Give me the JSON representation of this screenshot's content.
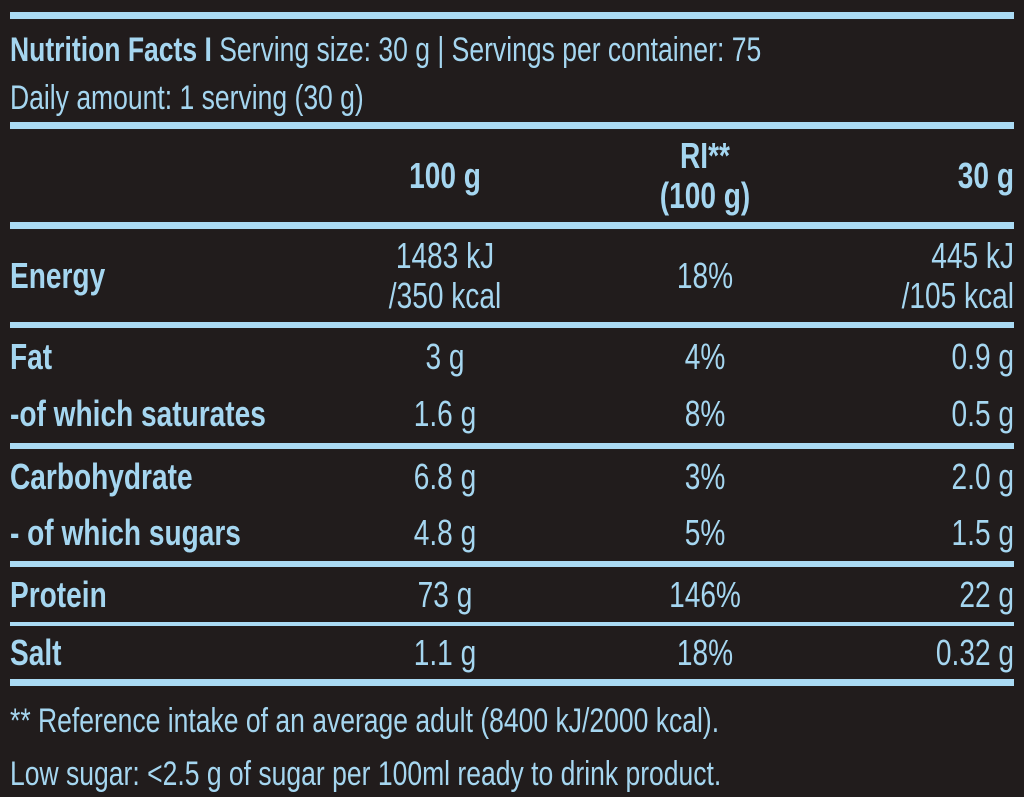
{
  "colors": {
    "background": "#211c1c",
    "text": "#a5d6f0",
    "rule": "#aadaf3"
  },
  "header": {
    "title_bold": "Nutrition Facts I",
    "title_regular": "Serving size: 30 g | Servings per container: 75",
    "daily_amount": "Daily amount: 1 serving (30 g)"
  },
  "table": {
    "column_headers": {
      "per_100g": "100 g",
      "ri_line1": "RI**",
      "ri_line2": "(100 g)",
      "per_30g": "30 g"
    },
    "rows": [
      {
        "label": "Energy",
        "per_100g_l1": "1483 kJ",
        "per_100g_l2": "/350 kcal",
        "ri": "18%",
        "per_30g_l1": "445 kJ",
        "per_30g_l2": "/105 kcal"
      },
      {
        "label": "Fat",
        "per_100g": "3 g",
        "ri": "4%",
        "per_30g": "0.9 g"
      },
      {
        "label": "-of which saturates",
        "per_100g": "1.6 g",
        "ri": "8%",
        "per_30g": "0.5 g"
      },
      {
        "label": "Carbohydrate",
        "per_100g": "6.8 g",
        "ri": "3%",
        "per_30g": "2.0 g"
      },
      {
        "label": "- of which sugars",
        "per_100g": "4.8 g",
        "ri": "5%",
        "per_30g": "1.5 g"
      },
      {
        "label": "Protein",
        "per_100g": "73 g",
        "ri": "146%",
        "per_30g": "22 g"
      },
      {
        "label": "Salt",
        "per_100g": "1.1 g",
        "ri": "18%",
        "per_30g": "0.32 g"
      }
    ]
  },
  "footer": {
    "reference_note": "** Reference intake of an average adult (8400 kJ/2000 kcal).",
    "low_sugar_note": "Low sugar: <2.5 g of sugar per 100ml ready to drink product."
  }
}
